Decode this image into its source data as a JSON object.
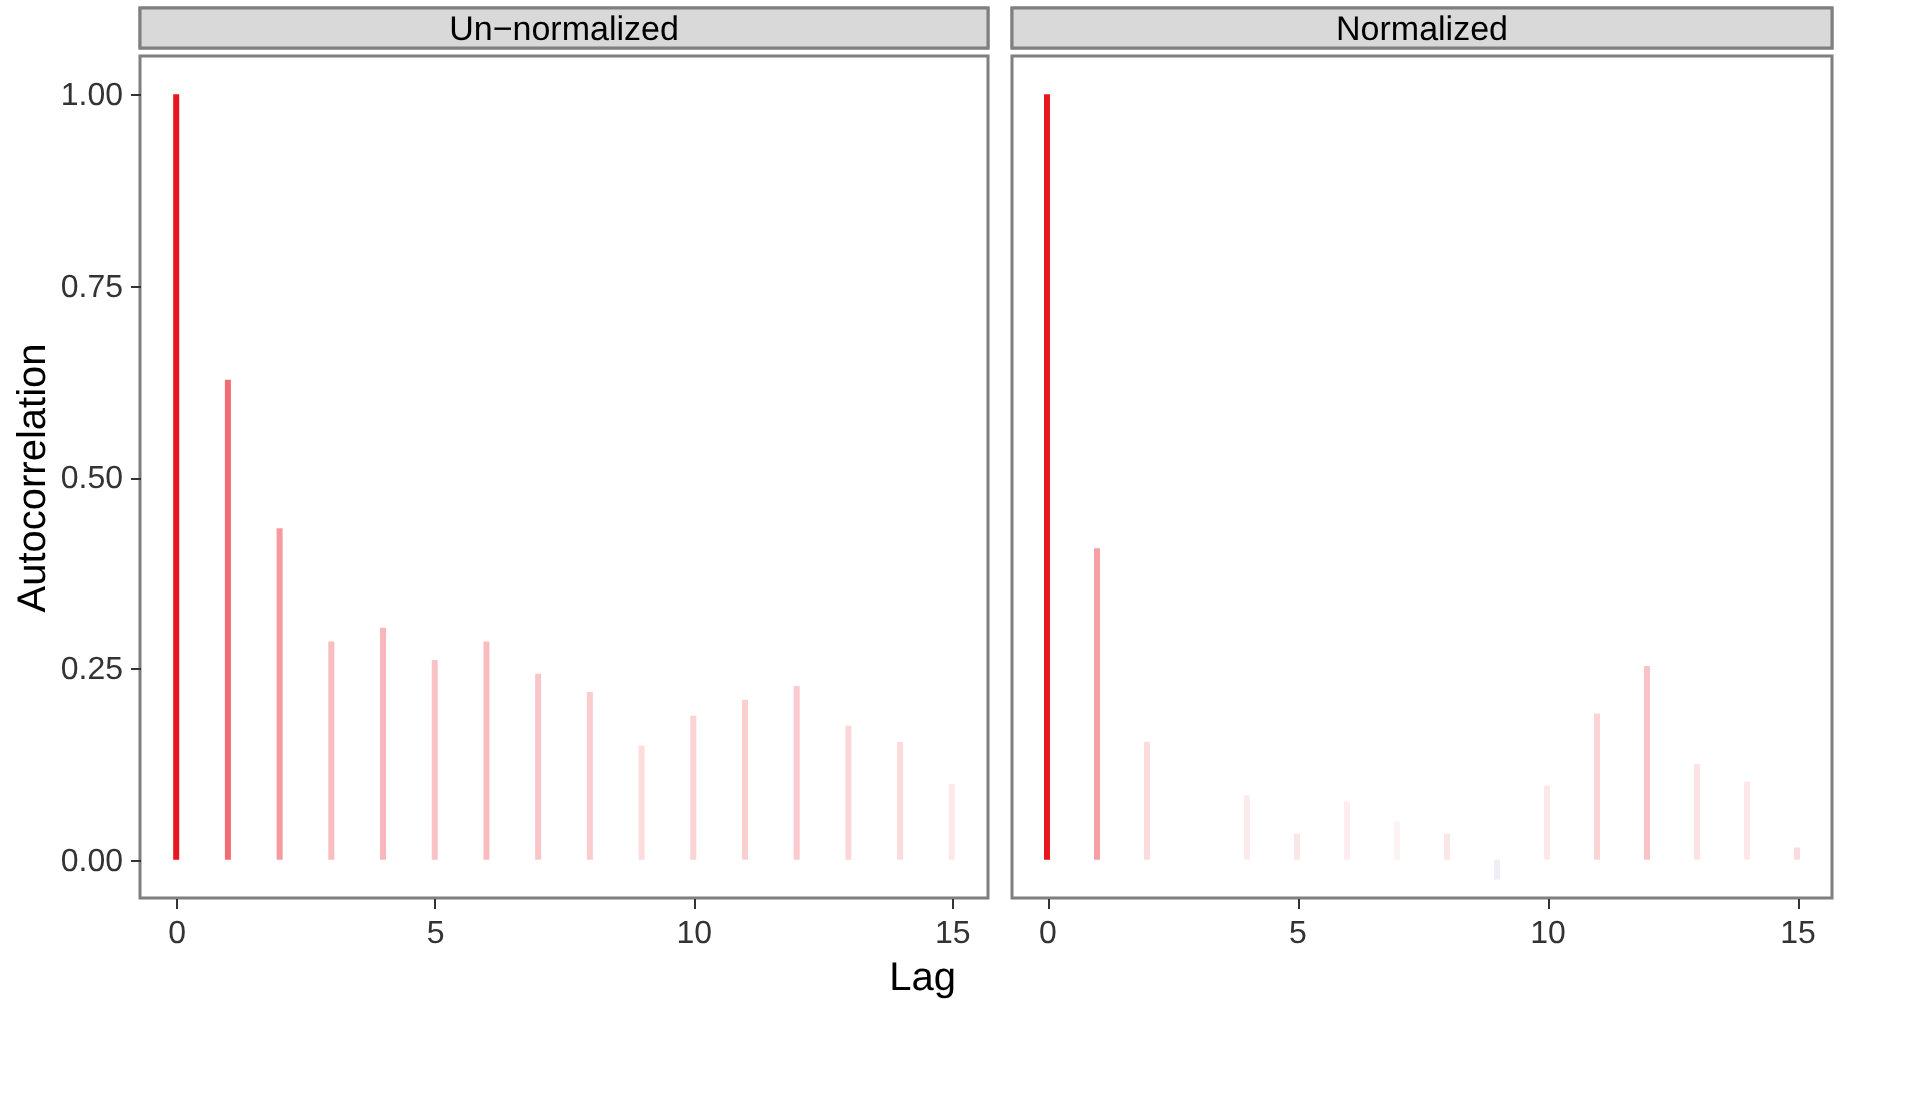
{
  "chart_data": [
    {
      "type": "bar",
      "title": "Un−normalized",
      "xlabel": "Lag",
      "ylabel": "Autocorrelation",
      "x": [
        0,
        1,
        2,
        3,
        4,
        5,
        6,
        7,
        8,
        9,
        10,
        11,
        12,
        13,
        14,
        15
      ],
      "values": [
        1.0,
        0.627,
        0.433,
        0.285,
        0.303,
        0.261,
        0.285,
        0.243,
        0.219,
        0.149,
        0.188,
        0.209,
        0.227,
        0.175,
        0.154,
        0.099
      ],
      "colors": [
        "#e8161e",
        "#f16d72",
        "#f59a9e",
        "#f8bdbf",
        "#f8b8bb",
        "#f9c2c4",
        "#f8bdbf",
        "#f9c6c8",
        "#faccce",
        "#fcdcdd",
        "#fbd3d5",
        "#facfd0",
        "#facacc",
        "#fbd6d8",
        "#fbdbdc",
        "#fde8e9"
      ],
      "xlim": [
        -0.7,
        15.7
      ],
      "ylim": [
        -0.05,
        1.05
      ],
      "xticks": [
        0,
        5,
        10,
        15
      ],
      "yticks": [
        {
          "value": 0,
          "label": "0.00"
        },
        {
          "value": 0.25,
          "label": "0.25"
        },
        {
          "value": 0.5,
          "label": "0.50"
        },
        {
          "value": 0.75,
          "label": "0.75"
        },
        {
          "value": 1,
          "label": "1.00"
        }
      ],
      "grid": false
    },
    {
      "type": "bar",
      "title": "Normalized",
      "x": [
        0,
        1,
        2,
        3,
        4,
        5,
        6,
        7,
        8,
        9,
        10,
        11,
        12,
        13,
        14,
        15
      ],
      "values": [
        1.0,
        0.407,
        0.154,
        0.0,
        0.084,
        0.034,
        0.076,
        0.05,
        0.034,
        -0.026,
        0.097,
        0.191,
        0.253,
        0.125,
        0.102,
        0.016
      ],
      "colors": [
        "#e8161e",
        "#f6a0a3",
        "#fbdbdc",
        "#fefefe",
        "#fdebec",
        "#fbe6e7",
        "#fdedee",
        "#fef3f4",
        "#fbe6e7",
        "#eeeef6",
        "#fde8e9",
        "#fbd3d5",
        "#f9c4c6",
        "#fce2e3",
        "#fde8e9",
        "#fadcdd"
      ],
      "xlim": [
        -0.7,
        15.7
      ],
      "ylim": [
        -0.05,
        1.05
      ],
      "xticks": [
        0,
        5,
        10,
        15
      ],
      "tick_labels": "x",
      "grid": false
    }
  ]
}
